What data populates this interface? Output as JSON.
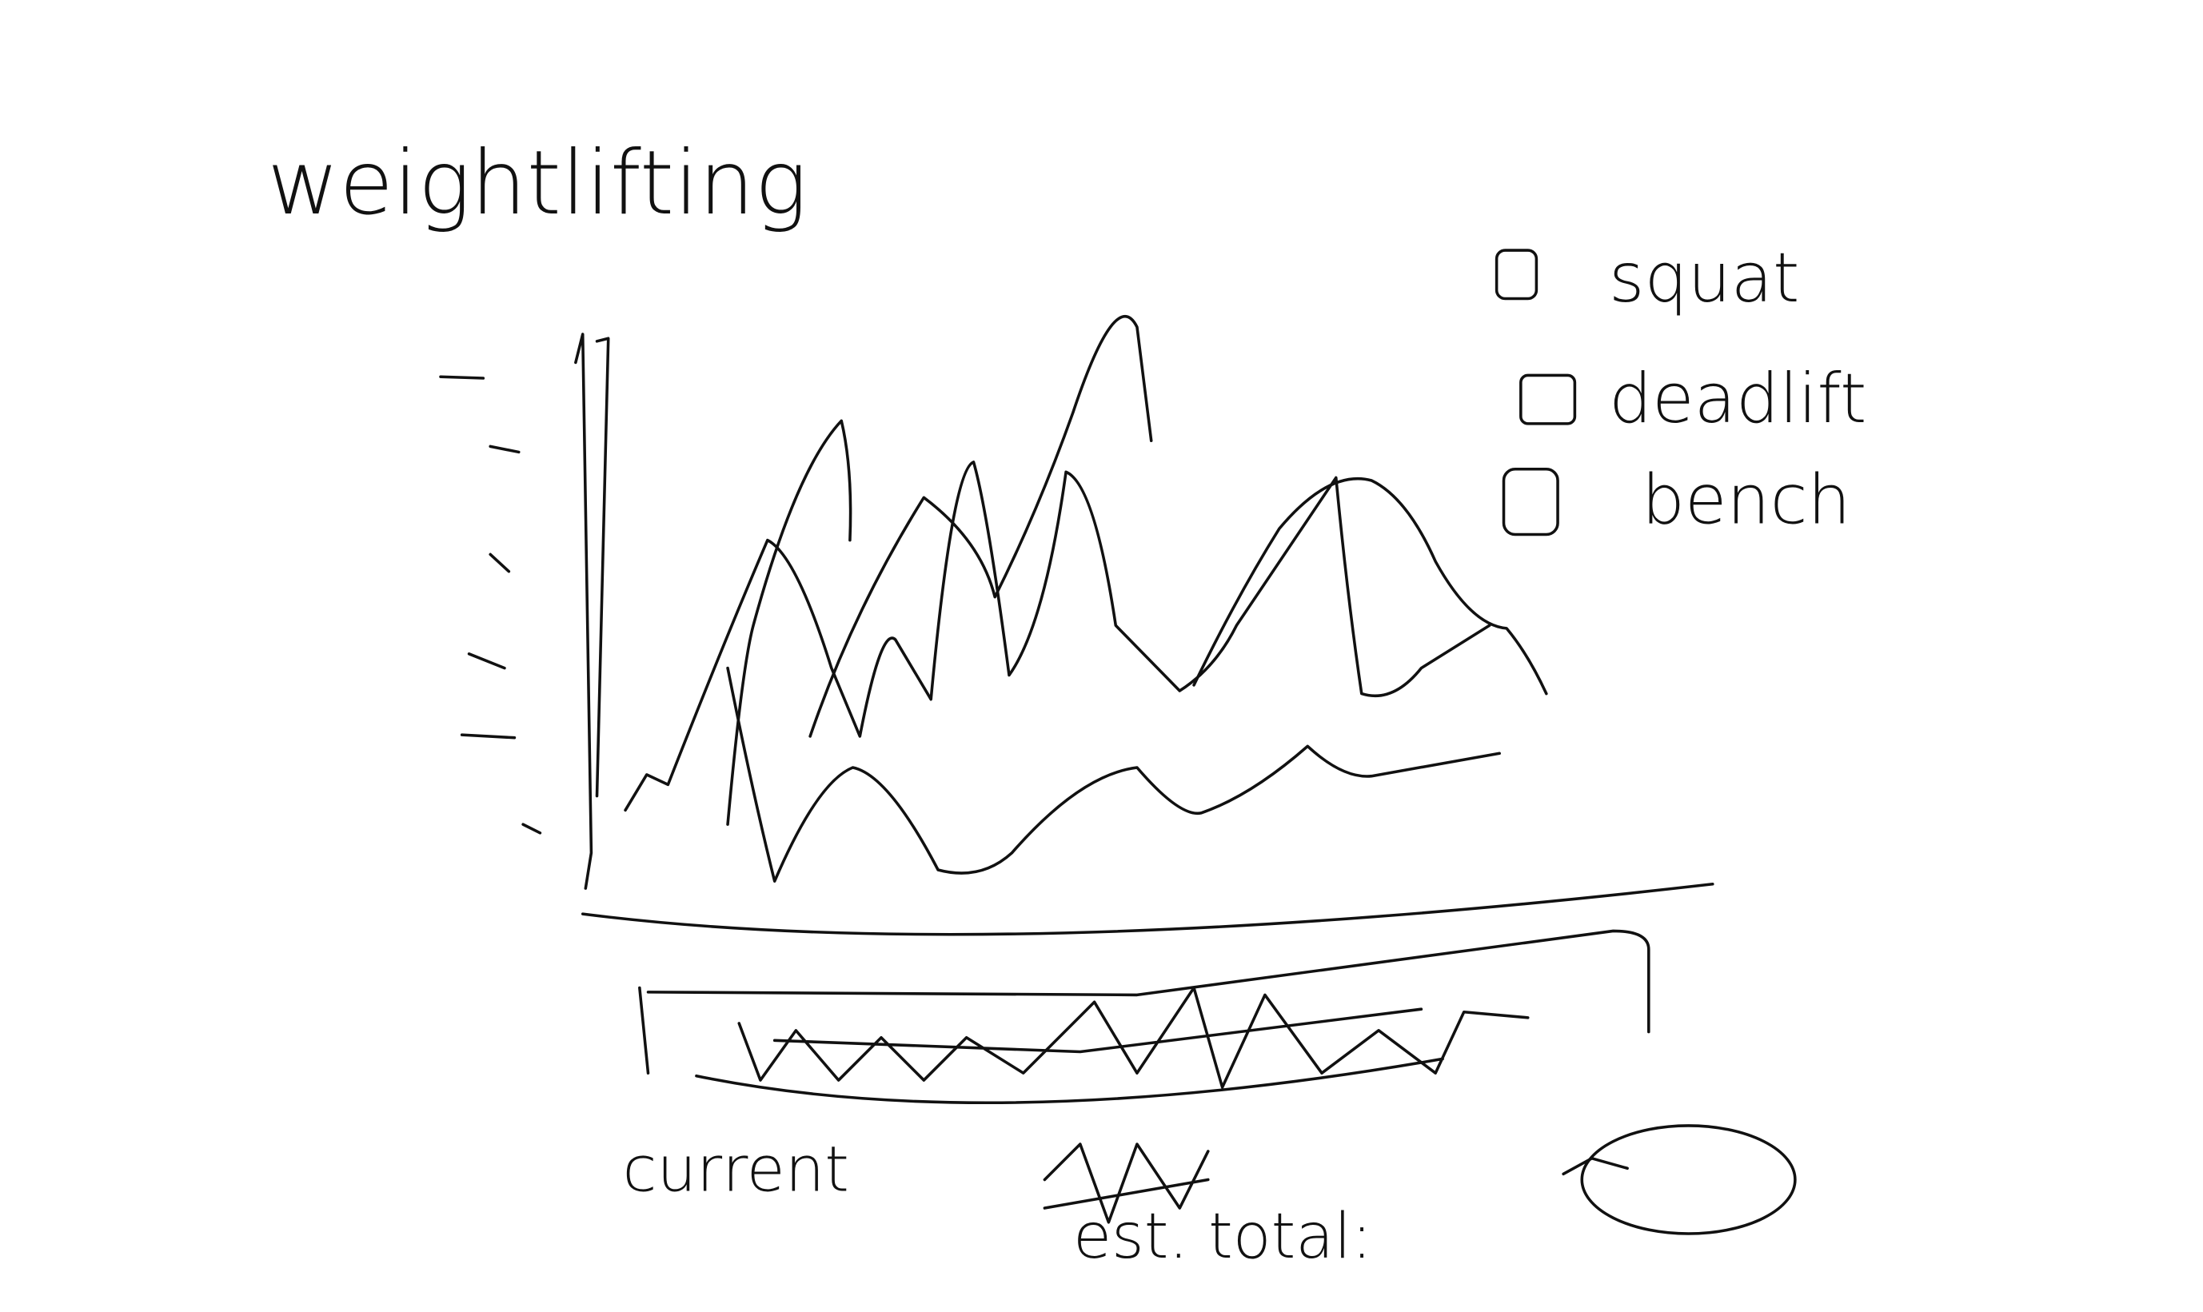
{
  "header": {
    "title": "weightlifting"
  },
  "legend": {
    "items": [
      "squat",
      "deadlift",
      "bench"
    ]
  },
  "footer": {
    "current_label": "current",
    "total_label": "est. total:"
  }
}
